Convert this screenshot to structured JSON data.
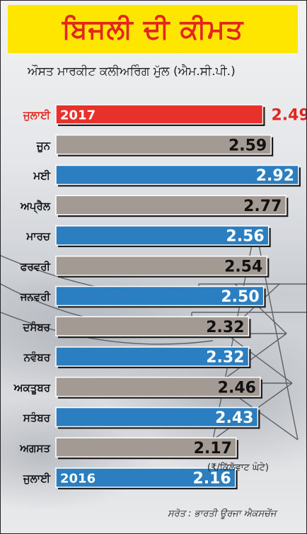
{
  "title": "ਬਿਜਲੀ ਦੀ ਕੀਮਤ",
  "subtitle": "ਔਸਤ ਮਾਰਕੀਟ ਕਲੀਅਰਿੰਗ ਮੁੱਲ (ਐਮ.ਸੀ.ਪੀ.)",
  "unit_note": "(₹/ਕਿੱਲੋਵਾਟ ਘੰਟੇ)",
  "source": "ਸਰੋਤ : ਭਾਰਤੀ ਊਰਜਾ ਐਕਸਚੇਂਜ",
  "colors": {
    "highlight": "#e8312a",
    "blue": "#2b7fc1",
    "gray": "#a39a94",
    "label_highlight": "#e2251f",
    "title_bg": "#ffe600"
  },
  "chart_data": {
    "type": "bar",
    "orientation": "horizontal",
    "categories": [
      "ਜੁਲਾਈ",
      "ਜੂਨ",
      "ਮਈ",
      "ਅਪ੍ਰੈਲ",
      "ਮਾਰਚ",
      "ਫਰਵਰੀ",
      "ਜਨਵਰੀ",
      "ਦਸੰਬਰ",
      "ਨਵੰਬਰ",
      "ਅਕਤੂਬਰ",
      "ਸਤੰਬਰ",
      "ਅਗਸਤ",
      "ਜੁਲਾਈ"
    ],
    "values": [
      2.49,
      2.59,
      2.92,
      2.77,
      2.56,
      2.54,
      2.5,
      2.32,
      2.32,
      2.46,
      2.43,
      2.17,
      2.16
    ],
    "value_labels": [
      "2.49",
      "2.59",
      "2.92",
      "2.77",
      "2.56",
      "2.54",
      "2.50",
      "2.32",
      "2.32",
      "2.46",
      "2.43",
      "2.17",
      "2.16"
    ],
    "bar_colors": [
      "highlight",
      "gray",
      "blue",
      "gray",
      "blue",
      "gray",
      "blue",
      "gray",
      "blue",
      "gray",
      "blue",
      "gray",
      "blue"
    ],
    "year_labels": [
      "2017",
      "",
      "",
      "",
      "",
      "",
      "",
      "",
      "",
      "",
      "",
      "",
      "2016"
    ],
    "highlight_index": 0
  }
}
